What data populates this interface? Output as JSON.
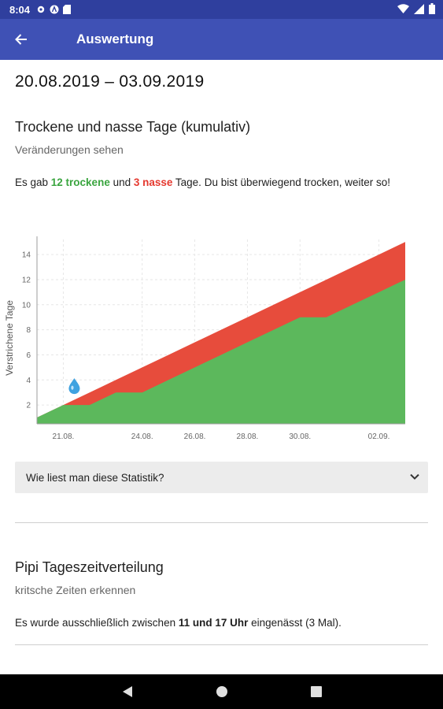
{
  "status_bar": {
    "time": "8:04",
    "icons": [
      "gear-icon",
      "circle-a-icon",
      "sdcard-icon"
    ],
    "right_icons": [
      "wifi-icon",
      "signal-icon",
      "battery-icon"
    ]
  },
  "app_bar": {
    "title": "Auswertung",
    "back_icon": "arrow-back-icon"
  },
  "date_range": "20.08.2019 – 03.09.2019",
  "section1": {
    "title": "Trockene und nasse Tage (kumulativ)",
    "subtitle": "Veränderungen sehen",
    "desc_prefix": "Es gab ",
    "dry_text": "12 trockene",
    "desc_mid": " und ",
    "wet_text": "3 nasse",
    "desc_suffix": " Tage. Du bist überwiegend trocken, weiter so!"
  },
  "chart_data": {
    "type": "area",
    "ylabel": "Verstrichene Tage",
    "xlabel": "",
    "x": [
      "20.08.",
      "21.08.",
      "22.08.",
      "23.08.",
      "24.08.",
      "25.08.",
      "26.08.",
      "27.08.",
      "28.08.",
      "29.08.",
      "30.08.",
      "31.08.",
      "01.09.",
      "02.09.",
      "03.09."
    ],
    "x_ticks": [
      "21.08.",
      "24.08.",
      "26.08.",
      "28.08.",
      "30.08.",
      "02.09."
    ],
    "y_ticks": [
      2,
      4,
      6,
      8,
      10,
      12,
      14
    ],
    "ylim": [
      0.5,
      15.2
    ],
    "grid": true,
    "series": [
      {
        "values": [
          1,
          2,
          2,
          3,
          3,
          4,
          5,
          6,
          7,
          8,
          9,
          9,
          10,
          11,
          12
        ],
        "color": "#5cb85c"
      },
      {
        "values": [
          1,
          2,
          3,
          4,
          5,
          6,
          7,
          8,
          9,
          10,
          11,
          12,
          13,
          14,
          15
        ],
        "color": "#e74c3c"
      }
    ],
    "marker_icon": "water-drop-icon",
    "marker_at": "21.08."
  },
  "expander": {
    "label": "Wie liest man diese Statistik?",
    "icon": "chevron-down-icon"
  },
  "section2": {
    "title": "Pipi Tageszeitverteilung",
    "subtitle": "kritsche Zeiten erkennen",
    "desc_prefix": "Es wurde ausschließlich zwischen ",
    "desc_bold": "11 und 17 Uhr",
    "desc_suffix": " eingenässt (3 Mal)."
  },
  "nav_bar": {
    "icons": [
      "back-triangle-icon",
      "home-circle-icon",
      "recents-square-icon"
    ]
  }
}
